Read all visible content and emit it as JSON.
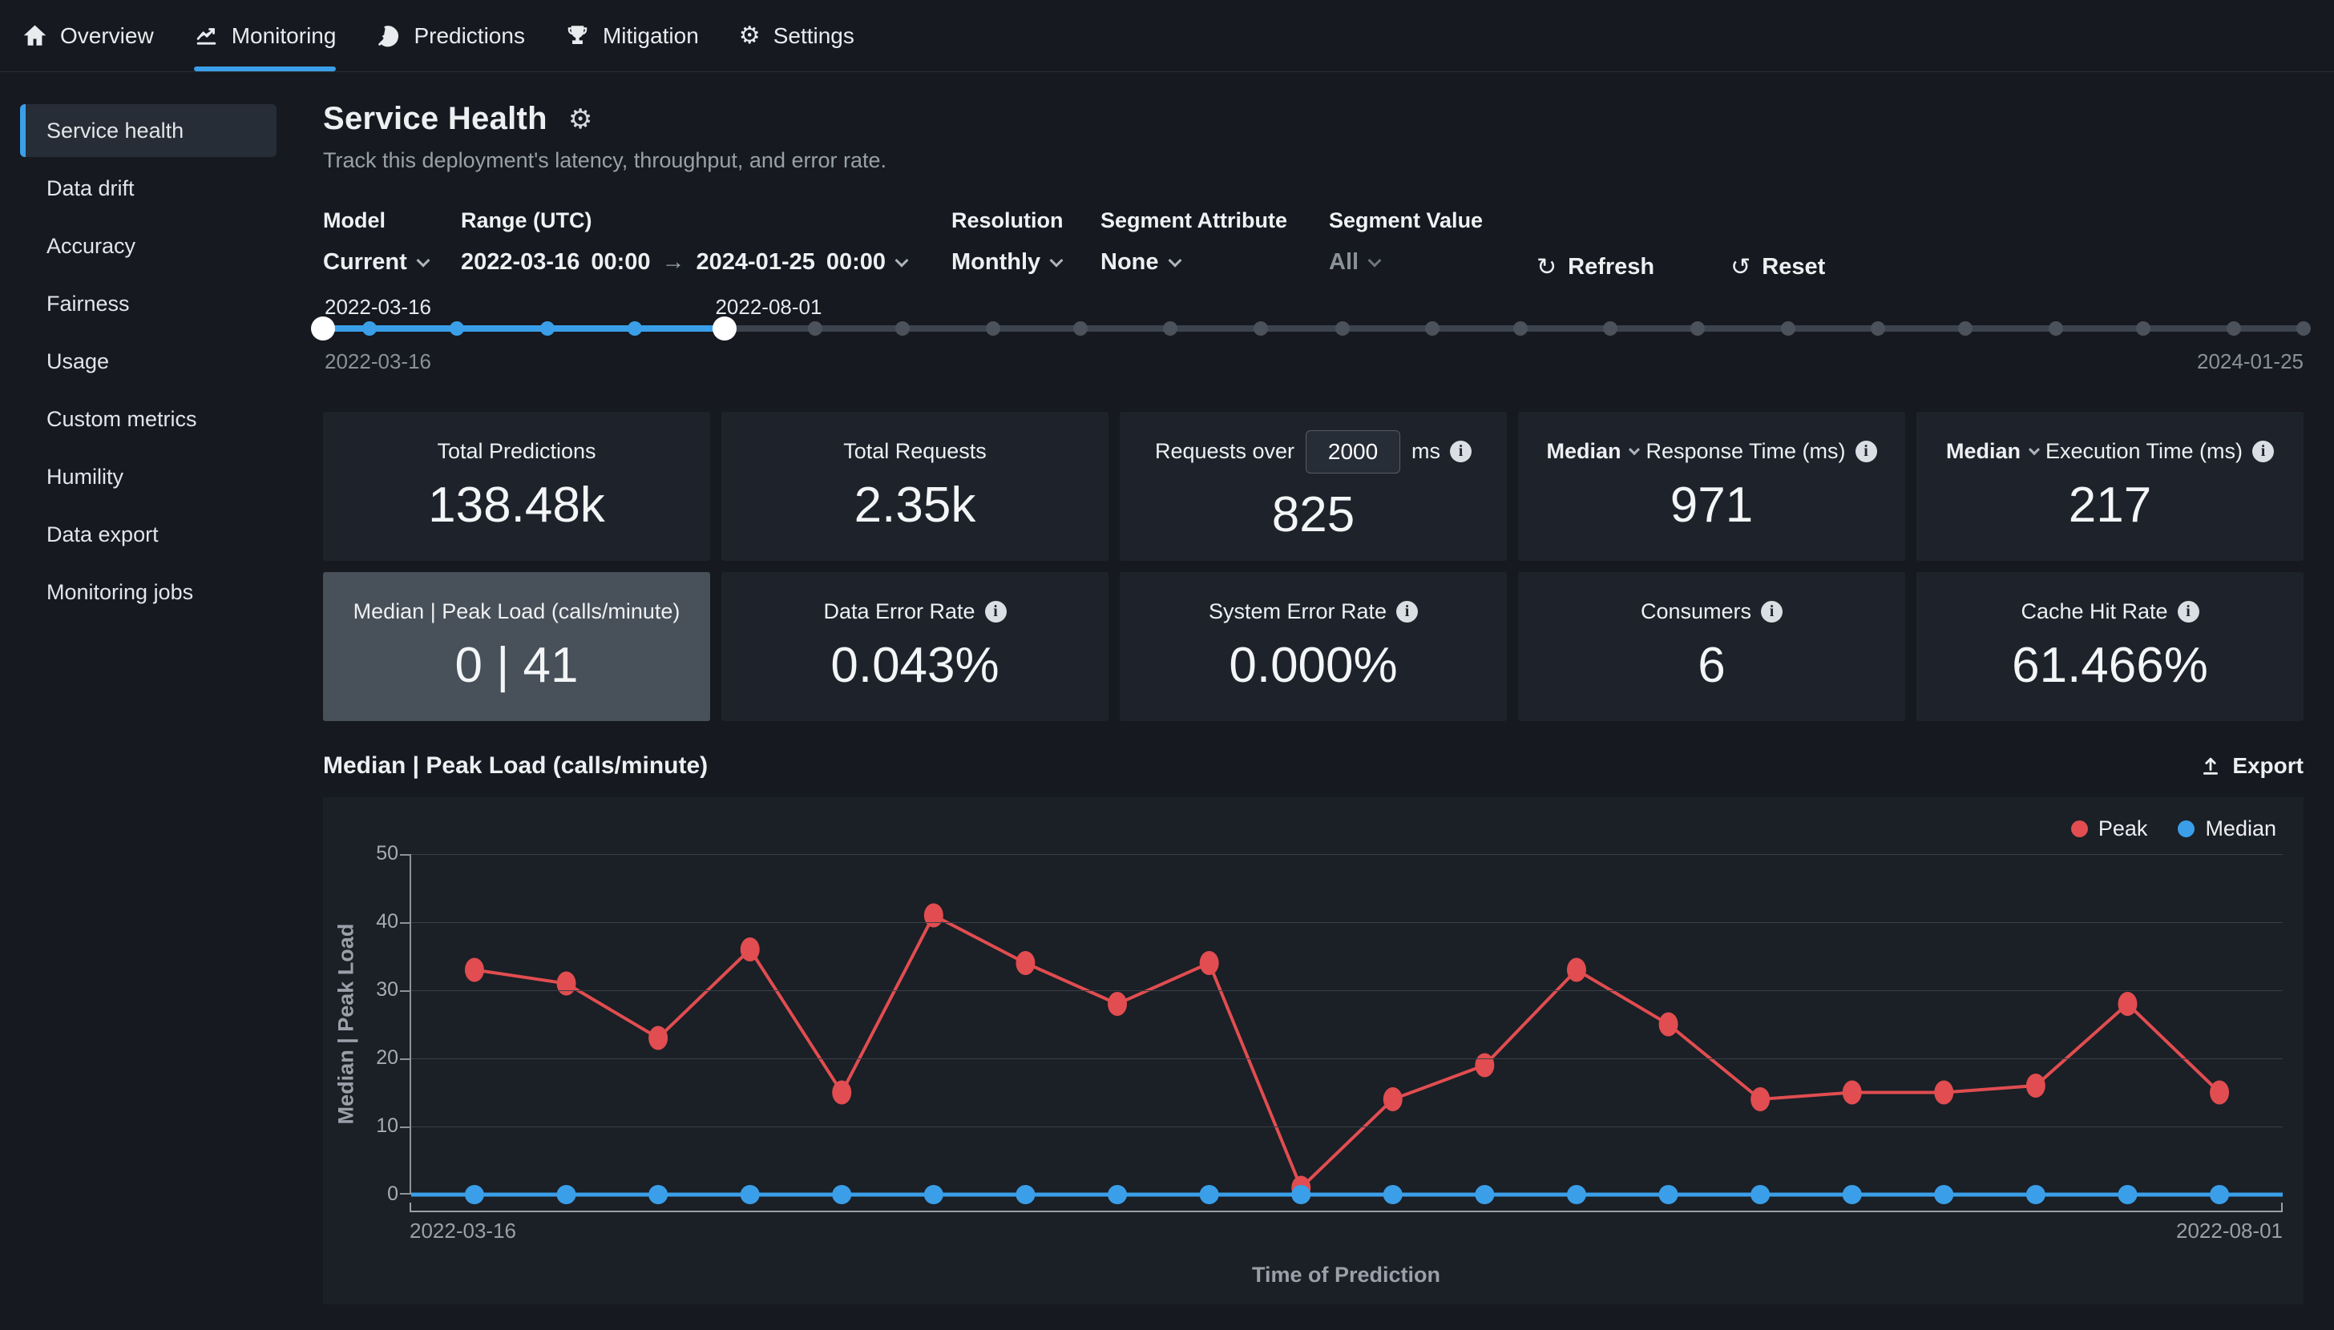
{
  "nav": {
    "items": [
      {
        "label": "Overview",
        "icon": "home-icon",
        "active": false
      },
      {
        "label": "Monitoring",
        "icon": "line-chart-icon",
        "active": true
      },
      {
        "label": "Predictions",
        "icon": "predictions-target-icon",
        "active": false
      },
      {
        "label": "Mitigation",
        "icon": "trophy-icon",
        "active": false
      },
      {
        "label": "Settings",
        "icon": "gear-icon",
        "active": false
      }
    ]
  },
  "sidebar": {
    "items": [
      {
        "label": "Service health",
        "selected": true
      },
      {
        "label": "Data drift",
        "selected": false
      },
      {
        "label": "Accuracy",
        "selected": false
      },
      {
        "label": "Fairness",
        "selected": false
      },
      {
        "label": "Usage",
        "selected": false
      },
      {
        "label": "Custom metrics",
        "selected": false
      },
      {
        "label": "Humility",
        "selected": false
      },
      {
        "label": "Data export",
        "selected": false
      },
      {
        "label": "Monitoring jobs",
        "selected": false
      }
    ]
  },
  "header": {
    "title": "Service Health",
    "subtitle": "Track this deployment's latency, throughput, and error rate."
  },
  "filters": {
    "model": {
      "label": "Model",
      "value": "Current"
    },
    "range": {
      "label": "Range (UTC)",
      "start_date": "2022-03-16",
      "start_time": "00:00",
      "end_date": "2024-01-25",
      "end_time": "00:00"
    },
    "resolution": {
      "label": "Resolution",
      "value": "Monthly"
    },
    "segment_attribute": {
      "label": "Segment Attribute",
      "value": "None"
    },
    "segment_value": {
      "label": "Segment Value",
      "value": "All"
    },
    "refresh_label": "Refresh",
    "reset_label": "Reset"
  },
  "timeline": {
    "range_start": "2022-03-16",
    "range_end": "2024-01-25",
    "selected_start": "2022-03-16",
    "selected_end": "2022-08-01"
  },
  "metrics": {
    "cards": [
      {
        "label": "Total Predictions",
        "value": "138.48k"
      },
      {
        "label": "Total Requests",
        "value": "2.35k"
      },
      {
        "label_pre": "Requests over",
        "input": "2000",
        "label_post": "ms",
        "value": "825"
      },
      {
        "label_bold": "Median",
        "label": "Response Time (ms)",
        "value": "971"
      },
      {
        "label_bold": "Median",
        "label": "Execution Time (ms)",
        "value": "217"
      },
      {
        "label": "Median | Peak Load (calls/minute)",
        "value": "0 | 41",
        "selected": true
      },
      {
        "label": "Data Error Rate",
        "value": "0.043%"
      },
      {
        "label": "System Error Rate",
        "value": "0.000%"
      },
      {
        "label": "Consumers",
        "value": "6"
      },
      {
        "label": "Cache Hit Rate",
        "value": "61.466%"
      }
    ]
  },
  "chart": {
    "title": "Median | Peak Load (calls/minute)",
    "export_label": "Export",
    "legend": [
      {
        "name": "Peak",
        "color": "#e14d50"
      },
      {
        "name": "Median",
        "color": "#3a9fe8"
      }
    ]
  },
  "chart_data": {
    "type": "line",
    "title": "Median | Peak Load (calls/minute)",
    "xlabel": "Time of Prediction",
    "ylabel": "Median | Peak Load",
    "ylim": [
      0,
      50
    ],
    "y_ticks": [
      0,
      10,
      20,
      30,
      40,
      50
    ],
    "x_axis_labels": [
      "2022-03-16",
      "2022-08-01"
    ],
    "grid": true,
    "legend_position": "top-right",
    "series": [
      {
        "name": "Peak",
        "color": "#e14d50",
        "values": [
          33,
          31,
          23,
          36,
          15,
          41,
          34,
          28,
          34,
          1,
          14,
          19,
          33,
          25,
          14,
          15,
          15,
          16,
          28,
          15
        ]
      },
      {
        "name": "Median",
        "color": "#3a9fe8",
        "values": [
          0,
          0,
          0,
          0,
          0,
          0,
          0,
          0,
          0,
          0,
          0,
          0,
          0,
          0,
          0,
          0,
          0,
          0,
          0,
          0
        ]
      }
    ]
  }
}
